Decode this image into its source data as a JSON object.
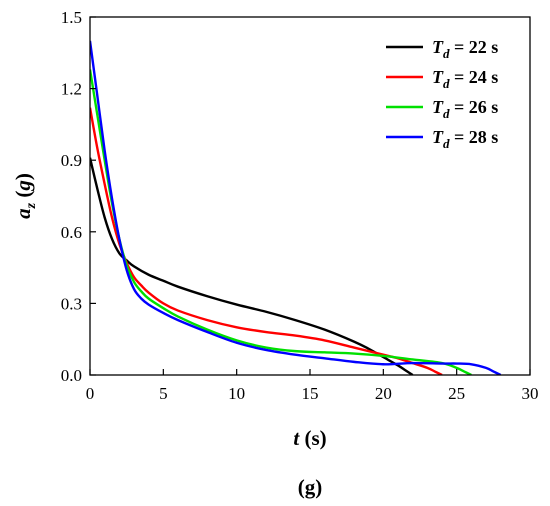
{
  "chart_data": {
    "type": "line",
    "panel_label": "(g)",
    "xlabel": {
      "var": "t",
      "unit": " (s)"
    },
    "ylabel": {
      "var": "a",
      "sub": "z",
      "unit_open": " (",
      "unit_var": "g",
      "unit_close": ")"
    },
    "xlim": [
      0,
      30
    ],
    "ylim": [
      0,
      1.5
    ],
    "xticks": [
      0,
      5,
      10,
      15,
      20,
      25,
      30
    ],
    "xtick_labels": [
      "0",
      "5",
      "10",
      "15",
      "20",
      "25",
      "30"
    ],
    "yticks": [
      0,
      0.3,
      0.6,
      0.9,
      1.2,
      1.5
    ],
    "ytick_labels": [
      "0.0",
      "0.3",
      "0.6",
      "0.9",
      "1.2",
      "1.5"
    ],
    "grid": false,
    "legend": "top-right",
    "series": [
      {
        "name": "Td = 22 s",
        "legend": {
          "var": "T",
          "sub": "d",
          "rest": " = 22 s"
        },
        "color": "#000000",
        "x": [
          0,
          0.5,
          1.0,
          1.5,
          2.0,
          2.5,
          3.0,
          4.0,
          5.0,
          6.0,
          8.0,
          10.0,
          12.0,
          14.0,
          16.0,
          18.0,
          19.0,
          20.0,
          21.0,
          21.5,
          22.0
        ],
        "y": [
          0.91,
          0.78,
          0.66,
          0.57,
          0.51,
          0.48,
          0.455,
          0.42,
          0.395,
          0.37,
          0.33,
          0.295,
          0.265,
          0.23,
          0.19,
          0.14,
          0.11,
          0.075,
          0.04,
          0.02,
          0.0
        ]
      },
      {
        "name": "Td = 24 s",
        "legend": {
          "var": "T",
          "sub": "d",
          "rest": " = 24 s"
        },
        "color": "#ff0000",
        "x": [
          0,
          0.5,
          1.0,
          1.5,
          2.0,
          2.5,
          3.0,
          3.5,
          4.0,
          5.0,
          6.0,
          8.0,
          10.0,
          12.0,
          14.0,
          16.0,
          18.0,
          20.0,
          21.0,
          22.0,
          23.0,
          23.5,
          24.0
        ],
        "y": [
          1.12,
          0.95,
          0.8,
          0.66,
          0.55,
          0.47,
          0.41,
          0.375,
          0.345,
          0.3,
          0.27,
          0.23,
          0.2,
          0.18,
          0.165,
          0.145,
          0.115,
          0.085,
          0.07,
          0.05,
          0.03,
          0.015,
          0.0
        ]
      },
      {
        "name": "Td = 26 s",
        "legend": {
          "var": "T",
          "sub": "d",
          "rest": " = 26 s"
        },
        "color": "#00e000",
        "x": [
          0,
          0.5,
          1.0,
          1.5,
          2.0,
          2.5,
          3.0,
          3.5,
          4.0,
          5.0,
          6.0,
          8.0,
          10.0,
          12.0,
          14.0,
          16.0,
          18.0,
          20.0,
          22.0,
          24.0,
          25.0,
          25.5,
          26.0
        ],
        "y": [
          1.28,
          1.09,
          0.9,
          0.72,
          0.57,
          0.46,
          0.39,
          0.35,
          0.32,
          0.28,
          0.245,
          0.19,
          0.145,
          0.115,
          0.1,
          0.095,
          0.09,
          0.08,
          0.065,
          0.05,
          0.03,
          0.015,
          0.0
        ]
      },
      {
        "name": "Td = 28 s",
        "legend": {
          "var": "T",
          "sub": "d",
          "rest": " = 28 s"
        },
        "color": "#0000ff",
        "x": [
          0,
          0.5,
          1.0,
          1.5,
          2.0,
          2.5,
          3.0,
          3.5,
          4.0,
          5.0,
          6.0,
          8.0,
          10.0,
          12.0,
          14.0,
          16.0,
          18.0,
          20.0,
          22.0,
          24.0,
          25.0,
          26.0,
          27.0,
          27.5,
          28.0
        ],
        "y": [
          1.4,
          1.17,
          0.94,
          0.74,
          0.57,
          0.44,
          0.36,
          0.32,
          0.295,
          0.26,
          0.23,
          0.18,
          0.135,
          0.105,
          0.085,
          0.07,
          0.055,
          0.045,
          0.05,
          0.048,
          0.048,
          0.045,
          0.03,
          0.015,
          0.0
        ]
      }
    ]
  }
}
